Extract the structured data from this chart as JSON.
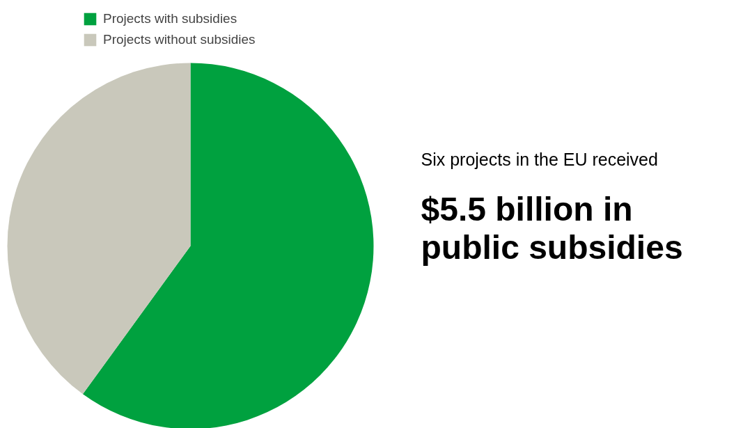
{
  "chart_data": {
    "type": "pie",
    "categories": [
      "Projects with subsidies",
      "Projects without subsidies"
    ],
    "values": [
      60,
      40
    ],
    "colors": [
      "#00a13f",
      "#c9c8bb"
    ],
    "legend": "top left",
    "annotations": [
      "Six projects in the EU received",
      "$5.5 billion in",
      "public subsidies"
    ]
  }
}
